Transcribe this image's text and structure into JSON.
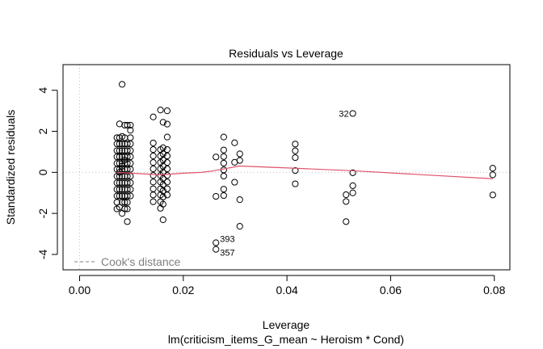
{
  "chart_data": {
    "type": "scatter",
    "title": "Residuals vs Leverage",
    "xlabel": "Leverage",
    "ylabel": "Standardized residuals",
    "subtitle": "lm(criticism_items_G_mean ~ Heroism * Cond)",
    "xlim": [
      -0.0032,
      0.083
    ],
    "ylim": [
      -4.75,
      5.25
    ],
    "x_ticks": [
      0.0,
      0.02,
      0.04,
      0.06,
      0.08
    ],
    "x_tick_labels": [
      "0.00",
      "0.02",
      "0.04",
      "0.06",
      "0.08"
    ],
    "y_ticks": [
      -4,
      -2,
      0,
      2,
      4
    ],
    "y_tick_labels": [
      "-4",
      "-2",
      "0",
      "2",
      "4"
    ],
    "legend": {
      "label": "Cook's distance",
      "placement": "bottom-left"
    },
    "point_columns": [
      {
        "leverage": 0.0072,
        "residuals": [
          -1.78,
          -1.46,
          -1.15,
          -0.83,
          -0.51,
          -0.19,
          0.15,
          0.44,
          0.76,
          1.06,
          1.39,
          1.69
        ]
      },
      {
        "leverage": 0.0077,
        "residuals": [
          -1.7,
          -1.15,
          -0.83,
          -0.51,
          -0.19,
          0.0,
          0.15,
          0.44,
          0.76,
          1.06,
          1.39,
          1.69,
          2.36
        ]
      },
      {
        "leverage": 0.0082,
        "residuals": [
          -2.0,
          -1.46,
          -1.15,
          -0.83,
          -0.51,
          -0.19,
          0.15,
          0.3,
          0.44,
          0.76,
          1.06,
          1.39,
          1.75,
          4.29
        ]
      },
      {
        "leverage": 0.0087,
        "residuals": [
          -1.78,
          -1.46,
          -1.15,
          -0.83,
          -0.51,
          -0.19,
          0.15,
          0.44,
          0.6,
          0.76,
          1.06,
          1.39,
          1.69,
          2.3
        ]
      },
      {
        "leverage": 0.0092,
        "residuals": [
          -2.4,
          -1.78,
          -1.46,
          -1.15,
          -0.83,
          -0.51,
          -0.19,
          0.15,
          0.44,
          0.76,
          1.06,
          1.39,
          2.3
        ]
      },
      {
        "leverage": 0.0098,
        "residuals": [
          -1.15,
          -0.83,
          -0.51,
          -0.19,
          0.15,
          0.44,
          0.76,
          1.06,
          1.39,
          1.69,
          2.05,
          2.3
        ]
      },
      {
        "leverage": 0.0142,
        "residuals": [
          -1.43,
          -1.1,
          -0.8,
          -0.47,
          -0.15,
          0.17,
          0.48,
          0.8,
          1.11,
          1.43,
          2.7
        ]
      },
      {
        "leverage": 0.0156,
        "residuals": [
          -1.75,
          -1.43,
          -1.1,
          -0.8,
          -0.47,
          -0.15,
          0.17,
          0.48,
          0.8,
          1.11,
          3.04
        ]
      },
      {
        "leverage": 0.0161,
        "residuals": [
          -2.31,
          -1.55,
          -1.2,
          -0.9,
          -0.6,
          -0.3,
          0.0,
          0.3,
          0.6,
          0.9,
          1.2,
          2.44
        ]
      },
      {
        "leverage": 0.0169,
        "residuals": [
          -1.1,
          -0.8,
          -0.47,
          -0.15,
          0.17,
          0.48,
          0.8,
          1.11,
          1.72,
          2.35,
          3.0
        ]
      },
      {
        "leverage": 0.0263,
        "residuals": [
          -3.43,
          -3.75,
          -1.17,
          0.75
        ]
      },
      {
        "leverage": 0.0278,
        "residuals": [
          -1.13,
          -0.82,
          -0.18,
          0.12,
          0.45,
          0.77,
          1.09,
          1.72
        ]
      },
      {
        "leverage": 0.0299,
        "residuals": [
          -0.48,
          0.49,
          1.44
        ]
      },
      {
        "leverage": 0.0309,
        "residuals": [
          -2.63,
          -1.33,
          0.58,
          0.9
        ]
      },
      {
        "leverage": 0.0416,
        "residuals": [
          -0.56,
          0.09,
          0.72,
          1.05,
          1.38
        ]
      },
      {
        "leverage": 0.0514,
        "residuals": [
          -2.4,
          -1.42,
          -1.09
        ]
      },
      {
        "leverage": 0.0527,
        "residuals": [
          -1.0,
          -0.65,
          -0.02,
          2.87
        ]
      },
      {
        "leverage": 0.0797,
        "residuals": [
          -1.1,
          -0.12,
          0.2
        ]
      }
    ],
    "labeled_points": [
      {
        "label": "32",
        "leverage": 0.0527,
        "residual": 2.87
      },
      {
        "label": "393",
        "leverage": 0.0263,
        "residual": -3.43
      },
      {
        "label": "357",
        "leverage": 0.0263,
        "residual": -3.75
      }
    ],
    "smooth_line": {
      "leverage": [
        0.0072,
        0.0157,
        0.02,
        0.0235,
        0.026,
        0.0308,
        0.0416,
        0.0526,
        0.0797
      ],
      "residual": [
        0.0,
        -0.12,
        -0.04,
        0.0,
        0.08,
        0.31,
        0.2,
        0.08,
        -0.31
      ]
    },
    "colors": {
      "smooth": "#DF536B",
      "reference": "#BEBEBE",
      "cooks": "#808080"
    }
  }
}
